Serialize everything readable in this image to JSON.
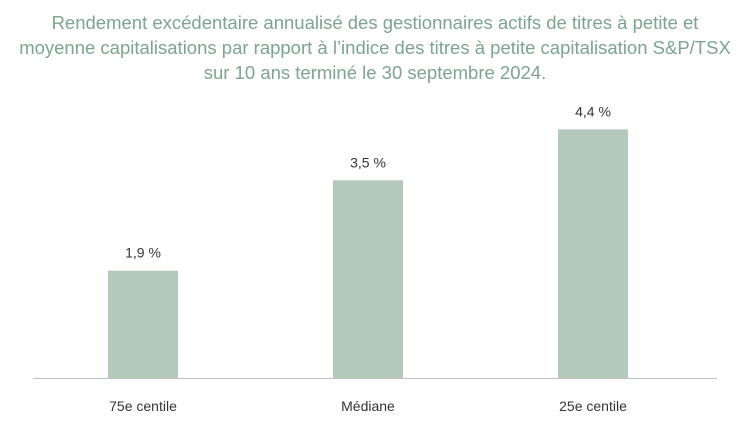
{
  "chart_data": {
    "type": "bar",
    "title_lines": [
      "Rendement excédentaire annualisé des gestionnaires actifs de titres à petite et",
      "moyenne capitalisations par rapport à l’indice des titres à petite capitalisation S&P/TSX",
      "sur 10 ans terminé le 30 septembre 2024."
    ],
    "categories": [
      "75e centile",
      "Médiane",
      "25e centile"
    ],
    "values": [
      1.9,
      3.5,
      4.4
    ],
    "value_labels": [
      "1,9 %",
      "3,5 %",
      "4,4 %"
    ],
    "ylim": [
      0,
      5
    ],
    "grid": false,
    "bar_color": "#b3c9bc",
    "title_color": "#7aa58f",
    "axis_color": "#bfbfbf"
  }
}
